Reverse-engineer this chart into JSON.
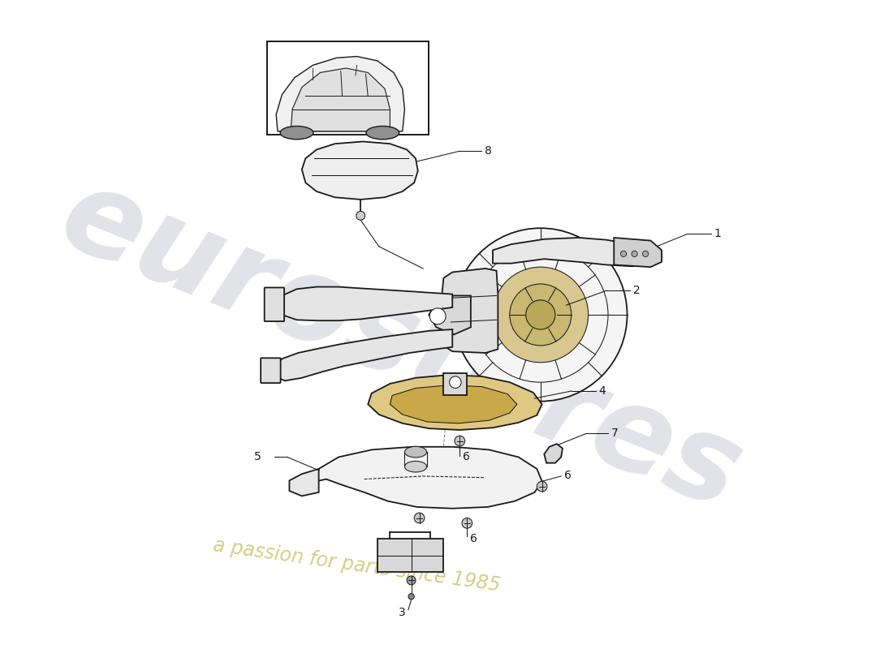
{
  "background_color": "#ffffff",
  "line_color": "#1a1a1a",
  "watermark1": "eurostores",
  "watermark2": "a passion for parts since 1985",
  "wm_color1": "#b8b8c8",
  "wm_color2": "#cccc78",
  "fig_width": 11.0,
  "fig_height": 8.0,
  "dpi": 100
}
